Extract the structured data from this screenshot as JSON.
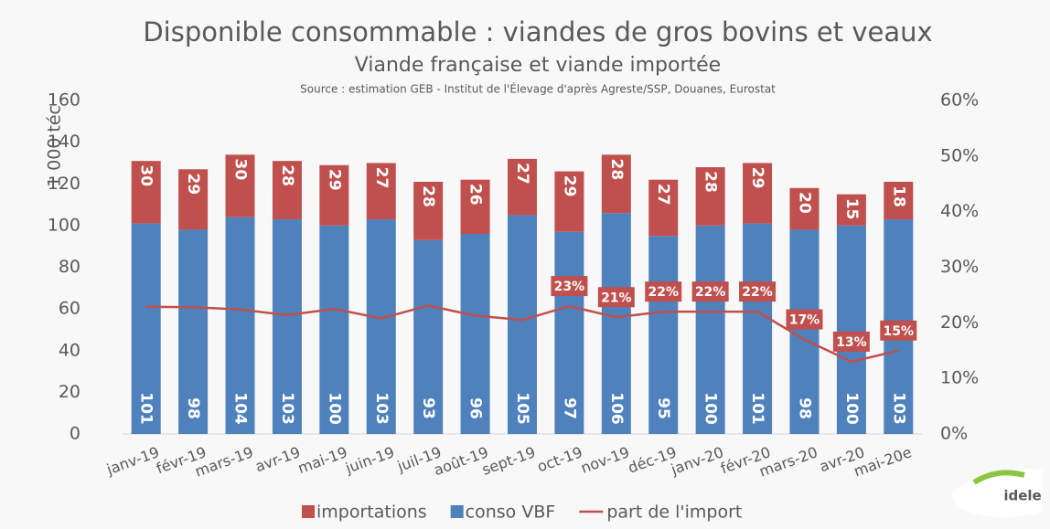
{
  "chart_data": {
    "type": "bar",
    "title": "Disponible consommable : viandes de gros bovins et veaux",
    "subtitle": "Viande française et viande importée",
    "source": "Source : estimation GEB - Institut de l'Élevage d'après Agreste/SSP, Douanes, Eurostat",
    "y_label": "1 000 téc",
    "stacked": true,
    "categories": [
      "janv-19",
      "févr-19",
      "mars-19",
      "avr-19",
      "mai-19",
      "juin-19",
      "juil-19",
      "août-19",
      "sept-19",
      "oct-19",
      "nov-19",
      "déc-19",
      "janv-20",
      "févr-20",
      "mars-20",
      "avr-20",
      "mai-20e"
    ],
    "series": [
      {
        "name": "conso VBF",
        "type": "bar",
        "color": "#4f81bd",
        "values": [
          101,
          98,
          104,
          103,
          100,
          103,
          93,
          96,
          105,
          97,
          106,
          95,
          100,
          101,
          98,
          100,
          103
        ]
      },
      {
        "name": "importations",
        "type": "bar",
        "color": "#c0504d",
        "values": [
          30,
          29,
          30,
          28,
          29,
          27,
          28,
          26,
          27,
          29,
          28,
          27,
          28,
          29,
          20,
          15,
          18
        ]
      },
      {
        "name": "part de l'import",
        "type": "line",
        "axis": "y2",
        "color": "#c0504d",
        "values": [
          22.9,
          22.8,
          22.4,
          21.4,
          22.5,
          20.8,
          23.1,
          21.3,
          20.5,
          23,
          21,
          22,
          22,
          22,
          17,
          13,
          15
        ],
        "value_labels": [
          null,
          null,
          null,
          null,
          null,
          null,
          null,
          null,
          null,
          "23%",
          "21%",
          "22%",
          "22%",
          "22%",
          "17%",
          "13%",
          "15%"
        ]
      }
    ],
    "legend_order": [
      1,
      0,
      2
    ],
    "ylim": [
      0,
      160
    ],
    "yticks": [
      0,
      20,
      40,
      60,
      80,
      100,
      120,
      140,
      160
    ],
    "y2lim": [
      0,
      60
    ],
    "y2ticks": [
      {
        "value": 0,
        "label": "0%"
      },
      {
        "value": 10,
        "label": "10%"
      },
      {
        "value": 20,
        "label": "20%"
      },
      {
        "value": 30,
        "label": "30%"
      },
      {
        "value": 40,
        "label": "40%"
      },
      {
        "value": 50,
        "label": "50%"
      },
      {
        "value": 60,
        "label": "60%"
      }
    ],
    "grid": false,
    "legend": "bottom"
  },
  "logo": "idele"
}
